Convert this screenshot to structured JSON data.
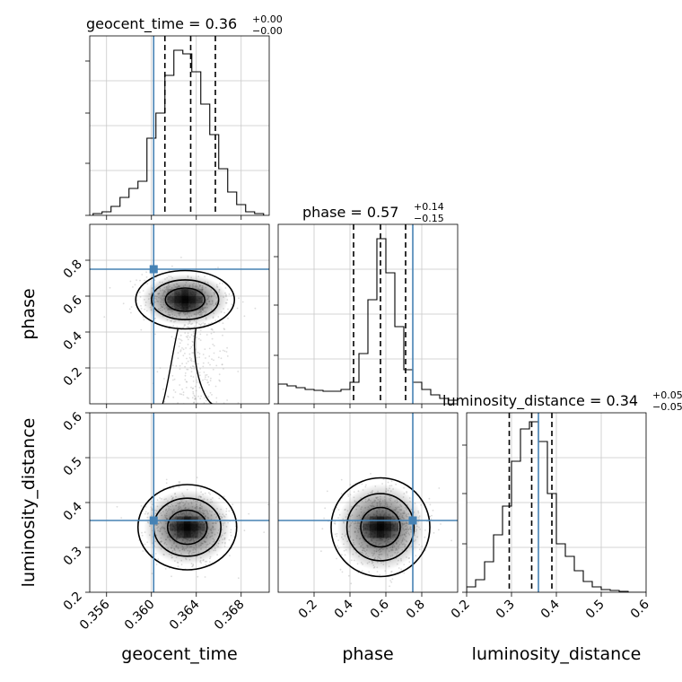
{
  "chart_data": [
    {
      "panel": "geocent_time-hist",
      "type": "histogram",
      "title_name": "geocent_time",
      "title_value": "0.36",
      "title_sup": "+0.00",
      "title_sub": "−0.00",
      "xlim": [
        0.3545,
        0.3705
      ],
      "ylim": [
        0,
        1.0
      ],
      "bin_edges": [
        0.3548,
        0.3556,
        0.3564,
        0.3572,
        0.358,
        0.3588,
        0.3596,
        0.3604,
        0.3612,
        0.362,
        0.3628,
        0.3636,
        0.3644,
        0.3652,
        0.366,
        0.3668,
        0.3676,
        0.3684,
        0.3692,
        0.37
      ],
      "counts": [
        0.01,
        0.02,
        0.05,
        0.1,
        0.15,
        0.19,
        0.43,
        0.57,
        0.78,
        0.92,
        0.9,
        0.8,
        0.62,
        0.45,
        0.26,
        0.13,
        0.06,
        0.02,
        0.01
      ],
      "quantiles": [
        0.3612,
        0.3635,
        0.3657
      ],
      "truth": 0.3602
    },
    {
      "panel": "phase-vs-geocent_time",
      "type": "contour-scatter",
      "xlim": [
        0.3545,
        0.3705
      ],
      "ylim": [
        0.0,
        1.0
      ],
      "yticks": [
        "0.2",
        "0.4",
        "0.6",
        "0.8"
      ],
      "ylabel": "phase",
      "center": [
        0.363,
        0.58
      ],
      "truth": [
        0.3602,
        0.75
      ]
    },
    {
      "panel": "phase-hist",
      "type": "histogram",
      "title_name": "phase",
      "title_value": "0.57",
      "title_sup": "+0.14",
      "title_sub": "−0.15",
      "xlim": [
        0.0,
        1.0
      ],
      "ylim": [
        0,
        1.0
      ],
      "bin_edges": [
        0.0,
        0.05,
        0.1,
        0.15,
        0.2,
        0.25,
        0.3,
        0.35,
        0.4,
        0.45,
        0.5,
        0.55,
        0.6,
        0.65,
        0.7,
        0.75,
        0.8,
        0.85,
        0.9,
        0.95,
        1.0
      ],
      "counts": [
        0.11,
        0.1,
        0.09,
        0.08,
        0.075,
        0.07,
        0.07,
        0.08,
        0.12,
        0.28,
        0.58,
        0.92,
        0.73,
        0.43,
        0.19,
        0.12,
        0.08,
        0.05,
        0.03,
        0.02
      ],
      "quantiles": [
        0.42,
        0.57,
        0.71
      ],
      "truth": 0.75
    },
    {
      "panel": "luminosity_distance-vs-geocent_time",
      "type": "contour-scatter",
      "xlim": [
        0.3545,
        0.3705
      ],
      "ylim": [
        0.2,
        0.6
      ],
      "xticks": [
        "0.356",
        "0.360",
        "0.364",
        "0.368"
      ],
      "yticks": [
        "0.2",
        "0.3",
        "0.4",
        "0.5",
        "0.6"
      ],
      "xlabel": "geocent_time",
      "ylabel": "luminosity_distance",
      "center": [
        0.3632,
        0.345
      ],
      "truth": [
        0.3602,
        0.36
      ]
    },
    {
      "panel": "luminosity_distance-vs-phase",
      "type": "contour-scatter",
      "xlim": [
        0.0,
        1.0
      ],
      "ylim": [
        0.2,
        0.6
      ],
      "xticks": [
        "0.2",
        "0.4",
        "0.6",
        "0.8"
      ],
      "xlabel": "phase",
      "center": [
        0.57,
        0.345
      ],
      "truth": [
        0.75,
        0.36
      ]
    },
    {
      "panel": "luminosity_distance-hist",
      "type": "histogram",
      "title_name": "luminosity_distance",
      "title_value": "0.34",
      "title_sup": "+0.05",
      "title_sub": "−0.05",
      "xlim": [
        0.2,
        0.6
      ],
      "ylim": [
        0,
        1.0
      ],
      "xticks": [
        "0.2",
        "0.3",
        "0.4",
        "0.5",
        "0.6"
      ],
      "xlabel": "luminosity_distance",
      "bin_edges": [
        0.2,
        0.22,
        0.24,
        0.26,
        0.28,
        0.3,
        0.32,
        0.34,
        0.36,
        0.38,
        0.4,
        0.42,
        0.44,
        0.46,
        0.48,
        0.5,
        0.52,
        0.54,
        0.56,
        0.58,
        0.6
      ],
      "counts": [
        0.03,
        0.07,
        0.17,
        0.32,
        0.48,
        0.73,
        0.91,
        0.95,
        0.84,
        0.55,
        0.27,
        0.2,
        0.12,
        0.06,
        0.03,
        0.015,
        0.01,
        0.005,
        0.0,
        0.0
      ],
      "quantiles": [
        0.295,
        0.345,
        0.39
      ],
      "truth": 0.36
    }
  ],
  "colors": {
    "truth": "#4682b4",
    "line": "#000000",
    "grid": "#c8c8c8",
    "samples": "#9a9a9a"
  }
}
